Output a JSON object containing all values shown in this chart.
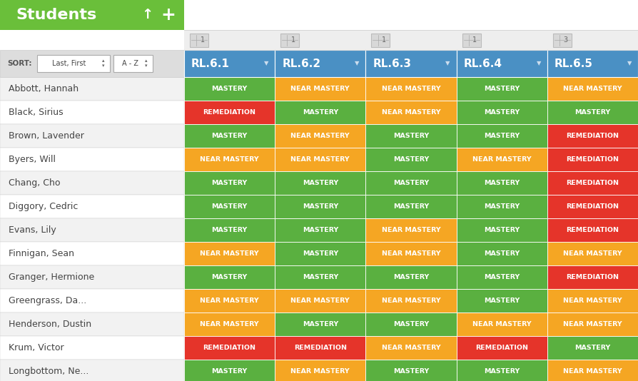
{
  "students": [
    "Abbott, Hannah",
    "Black, Sirius",
    "Brown, Lavender",
    "Byers, Will",
    "Chang, Cho",
    "Diggory, Cedric",
    "Evans, Lily",
    "Finnigan, Sean",
    "Granger, Hermione",
    "Greengrass, Da...",
    "Henderson, Dustin",
    "Krum, Victor",
    "Longbottom, Ne..."
  ],
  "standards": [
    "RL.6.1",
    "RL.6.2",
    "RL.6.3",
    "RL.6.4",
    "RL.6.5"
  ],
  "standard_counts": [
    "1",
    "1",
    "1",
    "1",
    "3"
  ],
  "data": [
    [
      "MASTERY",
      "NEAR MASTERY",
      "NEAR MASTERY",
      "MASTERY",
      "NEAR MASTERY"
    ],
    [
      "REMEDIATION",
      "MASTERY",
      "NEAR MASTERY",
      "MASTERY",
      "MASTERY"
    ],
    [
      "MASTERY",
      "NEAR MASTERY",
      "MASTERY",
      "MASTERY",
      "REMEDIATION"
    ],
    [
      "NEAR MASTERY",
      "NEAR MASTERY",
      "MASTERY",
      "NEAR MASTERY",
      "REMEDIATION"
    ],
    [
      "MASTERY",
      "MASTERY",
      "MASTERY",
      "MASTERY",
      "REMEDIATION"
    ],
    [
      "MASTERY",
      "MASTERY",
      "MASTERY",
      "MASTERY",
      "REMEDIATION"
    ],
    [
      "MASTERY",
      "MASTERY",
      "NEAR MASTERY",
      "MASTERY",
      "REMEDIATION"
    ],
    [
      "NEAR MASTERY",
      "MASTERY",
      "NEAR MASTERY",
      "MASTERY",
      "NEAR MASTERY"
    ],
    [
      "MASTERY",
      "MASTERY",
      "MASTERY",
      "MASTERY",
      "REMEDIATION"
    ],
    [
      "NEAR MASTERY",
      "NEAR MASTERY",
      "NEAR MASTERY",
      "MASTERY",
      "NEAR MASTERY"
    ],
    [
      "NEAR MASTERY",
      "MASTERY",
      "MASTERY",
      "NEAR MASTERY",
      "NEAR MASTERY"
    ],
    [
      "REMEDIATION",
      "REMEDIATION",
      "NEAR MASTERY",
      "REMEDIATION",
      "MASTERY"
    ],
    [
      "MASTERY",
      "NEAR MASTERY",
      "MASTERY",
      "MASTERY",
      "NEAR MASTERY"
    ]
  ],
  "colors": {
    "MASTERY": "#5ab040",
    "NEAR MASTERY": "#f5a623",
    "REMEDIATION": "#e5342a"
  },
  "header_bg": "#4a90c4",
  "header_text": "#ffffff",
  "students_header_bg": "#6abf3a",
  "students_header_text": "#ffffff",
  "sort_bar_bg": "#dddddd",
  "row_bg_light": "#f2f2f2",
  "row_bg_white": "#ffffff",
  "student_text_color": "#444444",
  "title": "Students",
  "sort_label": "SORT:",
  "sort_option1": "Last, First",
  "sort_option2": "A - Z",
  "cell_text_color": "#ffffff",
  "top_strip_bg": "#eeeeee",
  "icon_box_bg": "#d8d8d8",
  "icon_box_border": "#bbbbbb",
  "fig_width": 8.94,
  "fig_height": 5.34
}
